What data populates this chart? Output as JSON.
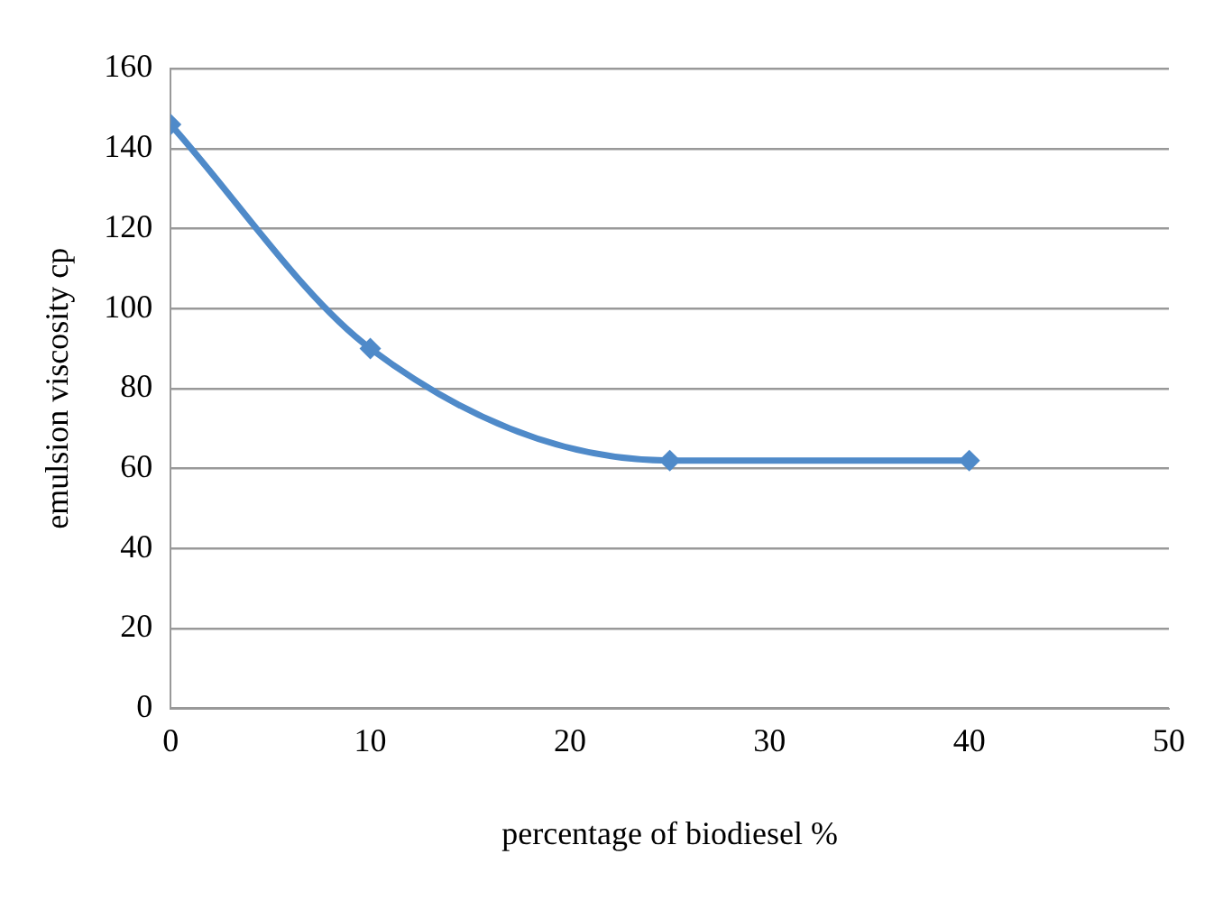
{
  "chart_data": {
    "type": "line",
    "xlabel": "percentage of biodiesel %",
    "ylabel": "emulsion viscosity cp",
    "x": [
      0,
      10,
      25,
      40
    ],
    "series": [
      {
        "color": "#4f8ac9",
        "values": [
          146,
          90,
          62,
          62
        ]
      }
    ],
    "xlim": [
      0,
      50
    ],
    "xticks": [
      0,
      10,
      20,
      30,
      40,
      50
    ],
    "ylim": [
      0,
      160
    ],
    "yticks": [
      0,
      20,
      40,
      60,
      80,
      100,
      120,
      140,
      160
    ],
    "grid": "y",
    "legend": false,
    "marker": "diamond",
    "line_style": "solid"
  }
}
